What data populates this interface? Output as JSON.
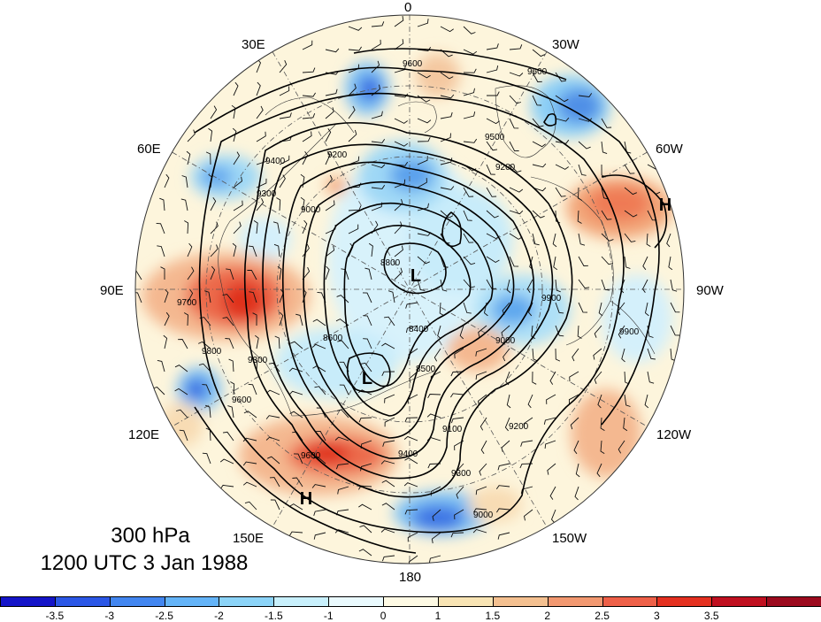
{
  "level": "300 hPa",
  "time": "1200 UTC 3 Jan 1988",
  "longitude_labels": {
    "n0": "0",
    "n30w": "30W",
    "n60w": "60W",
    "n90w": "90W",
    "n120w": "120W",
    "n150w": "150W",
    "n180": "180",
    "n150e": "150E",
    "n120e": "120E",
    "n90e": "90E",
    "n60e": "60E",
    "n30e": "30E"
  },
  "pressure_centers": [
    {
      "label": "L"
    },
    {
      "label": "L"
    },
    {
      "label": "H"
    },
    {
      "label": "H"
    }
  ],
  "contour_labels": [
    "9600",
    "9600",
    "9500",
    "9200",
    "9400",
    "9300",
    "9200",
    "9000",
    "8800",
    "8600",
    "8400",
    "8500",
    "9000",
    "9100",
    "9300",
    "9400",
    "9600",
    "9700",
    "9800",
    "9900",
    "9900",
    "9600",
    "9300",
    "9200",
    "9000"
  ],
  "colorbar": {
    "colors": [
      "#1414c8",
      "#2b57e6",
      "#4286f0",
      "#64b4f8",
      "#8cd4f8",
      "#c8f0fc",
      "#eafafe",
      "#fefae4",
      "#f8e4b4",
      "#f4c090",
      "#f29870",
      "#ee6048",
      "#e43020",
      "#c01020",
      "#9c0a1e"
    ],
    "ticks": [
      "-3.5",
      "-3",
      "-2.5",
      "-2",
      "-1.5",
      "-1",
      "0",
      "1",
      "1.5",
      "2",
      "2.5",
      "3",
      "3.5"
    ]
  }
}
